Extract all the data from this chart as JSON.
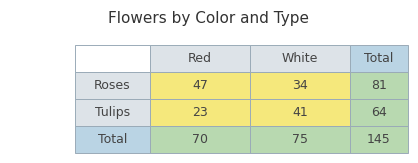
{
  "title": "Flowers by Color and Type",
  "col_headers": [
    "",
    "Red",
    "White",
    "Total"
  ],
  "row_labels": [
    "Roses",
    "Tulips",
    "Total"
  ],
  "table_data": [
    [
      47,
      34,
      81
    ],
    [
      23,
      41,
      64
    ],
    [
      70,
      75,
      145
    ]
  ],
  "bg_color": "#ffffff",
  "title_fontsize": 11,
  "cell_fontsize": 9,
  "color_header_gray": "#dde3e8",
  "color_header_blue": "#bad4e4",
  "color_label_gray": "#dde3e8",
  "color_label_blue": "#bad4e4",
  "color_yellow": "#f5e87c",
  "color_green": "#b8d9b0",
  "color_bg": "#ffffff",
  "border_color": "#9aabb8",
  "border_lw": 0.7
}
